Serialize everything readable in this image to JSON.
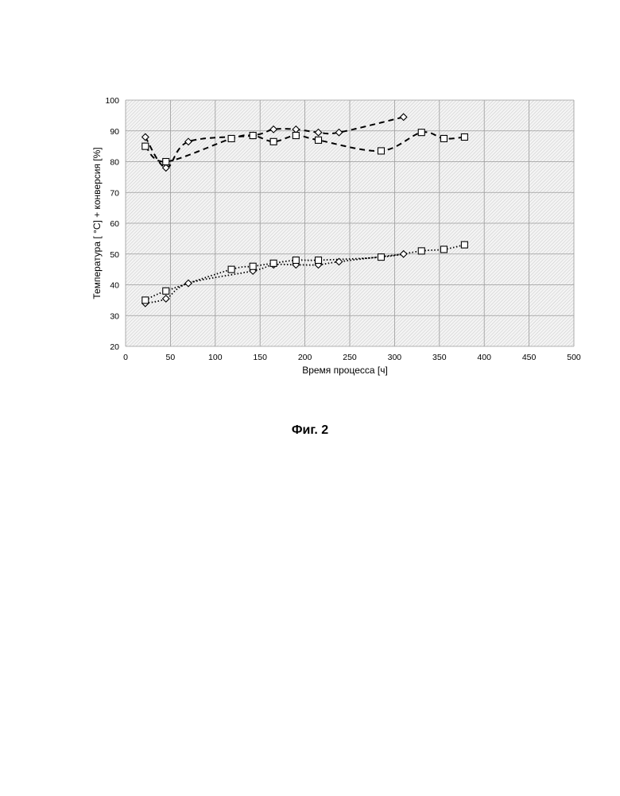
{
  "figure": {
    "caption": "Фиг. 2"
  },
  "chart_data": {
    "type": "line",
    "xlabel": "Время процесса [ч]",
    "ylabel": "Температура [ °C] + конверсия [%]",
    "xlim": [
      0,
      500
    ],
    "ylim": [
      20,
      100
    ],
    "xticks": [
      0,
      50,
      100,
      150,
      200,
      250,
      300,
      350,
      400,
      450,
      500
    ],
    "yticks": [
      20,
      30,
      40,
      50,
      60,
      70,
      80,
      90,
      100
    ],
    "grid": true,
    "legend": "none",
    "series": [
      {
        "marker": "diamond",
        "line": "dashed",
        "x": [
          22,
          45,
          70,
          142,
          165,
          190,
          215,
          238,
          310
        ],
        "y": [
          88,
          78,
          86.5,
          88.5,
          90.5,
          90.5,
          89.5,
          89.5,
          94.5
        ]
      },
      {
        "marker": "square",
        "line": "dashed",
        "x": [
          22,
          45,
          118,
          142,
          165,
          190,
          215,
          285,
          330,
          355,
          378
        ],
        "y": [
          85,
          80,
          87.5,
          88.5,
          86.5,
          88.5,
          87,
          83.5,
          89.5,
          87.5,
          88
        ]
      },
      {
        "marker": "diamond",
        "line": "dotted",
        "x": [
          22,
          45,
          70,
          142,
          165,
          190,
          215,
          238,
          310
        ],
        "y": [
          34,
          35.5,
          40.5,
          44.5,
          46.5,
          46.5,
          46.5,
          47.5,
          50
        ]
      },
      {
        "marker": "square",
        "line": "dotted",
        "x": [
          22,
          45,
          118,
          142,
          165,
          190,
          215,
          285,
          330,
          355,
          378
        ],
        "y": [
          35,
          38,
          45,
          46,
          47,
          48,
          48,
          49,
          51,
          51.5,
          53
        ]
      }
    ]
  }
}
